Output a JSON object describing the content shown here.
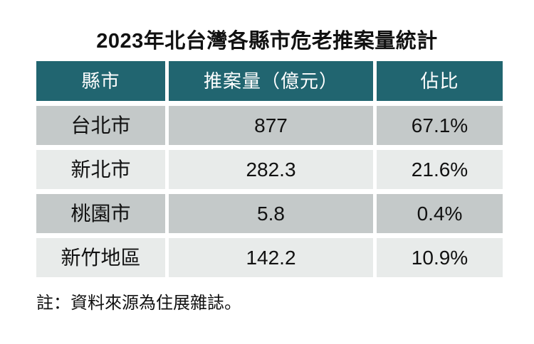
{
  "title": "2023年北台灣各縣市危老推案量統計",
  "table": {
    "headers": [
      "縣市",
      "推案量（億元）",
      "佔比"
    ],
    "rows": [
      {
        "county": "台北市",
        "volume": "877",
        "share": "67.1%"
      },
      {
        "county": "新北市",
        "volume": "282.3",
        "share": "21.6%"
      },
      {
        "county": "桃園市",
        "volume": "5.8",
        "share": "0.4%"
      },
      {
        "county": "新竹地區",
        "volume": "142.2",
        "share": "10.9%"
      }
    ]
  },
  "note": "註：資料來源為住展雜誌。",
  "colors": {
    "background": "#ffffff",
    "header_bg": "#216570",
    "header_text": "#ffffff",
    "row_odd_bg": "#c4c9c9",
    "row_even_bg": "#e8ebea",
    "text": "#111111"
  },
  "chart_data": {
    "type": "table",
    "title": "2023年北台灣各縣市危老推案量統計",
    "columns": [
      "縣市",
      "推案量（億元）",
      "佔比"
    ],
    "rows": [
      [
        "台北市",
        877,
        "67.1%"
      ],
      [
        "新北市",
        282.3,
        "21.6%"
      ],
      [
        "桃園市",
        5.8,
        "0.4%"
      ],
      [
        "新竹地區",
        142.2,
        "10.9%"
      ]
    ],
    "categories": [
      "台北市",
      "新北市",
      "桃園市",
      "新竹地區"
    ],
    "series": [
      {
        "name": "推案量（億元）",
        "values": [
          877,
          282.3,
          5.8,
          142.2
        ]
      },
      {
        "name": "佔比(%)",
        "values": [
          67.1,
          21.6,
          0.4,
          10.9
        ]
      }
    ],
    "note": "註：資料來源為住展雜誌。"
  }
}
